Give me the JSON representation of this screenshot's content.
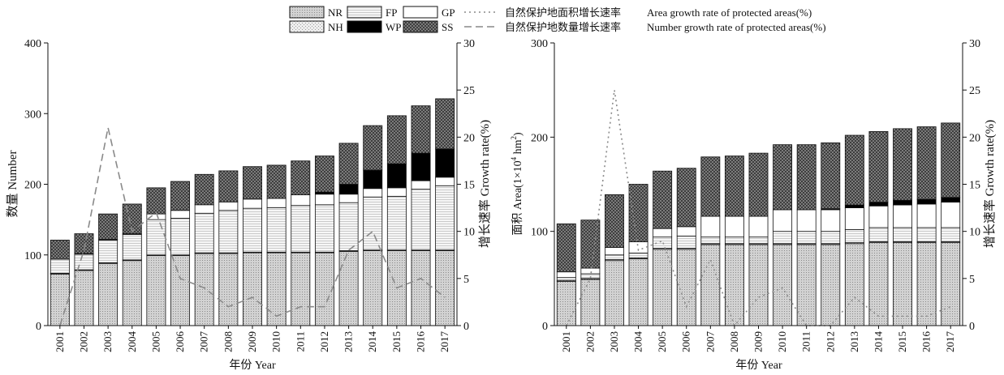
{
  "legend": {
    "items": [
      {
        "code": "NR",
        "pattern": "pat-nr"
      },
      {
        "code": "FP",
        "pattern": "pat-fp"
      },
      {
        "code": "GP",
        "pattern": "pat-gp"
      },
      {
        "code": "NH",
        "pattern": "pat-nh"
      },
      {
        "code": "WP",
        "pattern": "pat-wp"
      },
      {
        "code": "SS",
        "pattern": "pat-ss"
      }
    ],
    "line_area": {
      "zh": "自然保护地面积增长速率",
      "en": "Area growth rate of protected areas(%)"
    },
    "line_number": {
      "zh": "自然保护地数量增长速率",
      "en": "Number growth rate of protected areas(%)"
    }
  },
  "colors": {
    "nr": "#d8d8d8",
    "nh": "#ececec",
    "fp": "#f4f4f4",
    "gp": "#ffffff",
    "wp": "#000000",
    "ss": "#7a7a7a",
    "line": "#8a8a8a",
    "axis": "#111111"
  },
  "chart_data": [
    {
      "type": "bar",
      "stacked": true,
      "categories": [
        "2001",
        "2002",
        "2003",
        "2004",
        "2005",
        "2006",
        "2007",
        "2008",
        "2009",
        "2010",
        "2011",
        "2012",
        "2013",
        "2014",
        "2015",
        "2016",
        "2017"
      ],
      "series": [
        {
          "name": "NR",
          "values": [
            73,
            78,
            88,
            92,
            99,
            99,
            102,
            102,
            103,
            103,
            103,
            103,
            105,
            106,
            106,
            106,
            106
          ]
        },
        {
          "name": "NH",
          "values": [
            1,
            1,
            1,
            1,
            1,
            1,
            1,
            1,
            1,
            1,
            1,
            1,
            1,
            1,
            1,
            1,
            1
          ]
        },
        {
          "name": "FP",
          "values": [
            20,
            22,
            32,
            36,
            50,
            52,
            56,
            60,
            62,
            63,
            66,
            67,
            68,
            75,
            76,
            86,
            91
          ]
        },
        {
          "name": "GP",
          "values": [
            0,
            1,
            1,
            1,
            8,
            11,
            12,
            12,
            13,
            13,
            15,
            15,
            12,
            12,
            12,
            12,
            12
          ]
        },
        {
          "name": "WP",
          "values": [
            0,
            0,
            0,
            0,
            0,
            0,
            0,
            0,
            0,
            0,
            0,
            3,
            14,
            26,
            34,
            39,
            40
          ]
        },
        {
          "name": "SS",
          "values": [
            27,
            28,
            36,
            42,
            37,
            41,
            43,
            44,
            46,
            47,
            48,
            51,
            58,
            63,
            68,
            67,
            71
          ]
        }
      ],
      "lines": [
        {
          "name": "Number growth rate of protected areas(%)",
          "axis": "right",
          "values": [
            0,
            8,
            21,
            10,
            12,
            5,
            4,
            2,
            3,
            1,
            2,
            2,
            8,
            10,
            4,
            5,
            3
          ]
        }
      ],
      "ylabel": "数量  Number",
      "y2label": "增长速率  Growth rate(%)",
      "xlabel": "年份  Year",
      "ylim": [
        0,
        400
      ],
      "yticks": [
        0,
        100,
        200,
        300,
        400
      ],
      "y2lim": [
        0,
        30
      ],
      "y2ticks": [
        0,
        5,
        10,
        15,
        20,
        25,
        30
      ]
    },
    {
      "type": "bar",
      "stacked": true,
      "categories": [
        "2001",
        "2002",
        "2003",
        "2004",
        "2005",
        "2006",
        "2007",
        "2008",
        "2009",
        "2010",
        "2011",
        "2012",
        "2013",
        "2014",
        "2015",
        "2016",
        "2017"
      ],
      "series": [
        {
          "name": "NR",
          "values": [
            47,
            49,
            69,
            71,
            81,
            81,
            86,
            86,
            86,
            86,
            86,
            86,
            87,
            88,
            88,
            88,
            88
          ]
        },
        {
          "name": "NH",
          "values": [
            1,
            1,
            1,
            1,
            1,
            1,
            1,
            1,
            1,
            1,
            1,
            1,
            1,
            1,
            1,
            1,
            1
          ]
        },
        {
          "name": "FP",
          "values": [
            3,
            5,
            5,
            5,
            12,
            13,
            7,
            7,
            7,
            13,
            13,
            13,
            14,
            15,
            15,
            15,
            15
          ]
        },
        {
          "name": "GP",
          "values": [
            6,
            6,
            8,
            12,
            9,
            10,
            22,
            22,
            22,
            23,
            23,
            23,
            23,
            23,
            24,
            25,
            27
          ]
        },
        {
          "name": "WP",
          "values": [
            0,
            0,
            0,
            0,
            0,
            0,
            0,
            0,
            0,
            0,
            0,
            1,
            3,
            4,
            5,
            5,
            5
          ]
        },
        {
          "name": "SS",
          "values": [
            51,
            51,
            56,
            61,
            61,
            62,
            63,
            64,
            67,
            69,
            69,
            70,
            74,
            75,
            76,
            77,
            79
          ]
        }
      ],
      "lines": [
        {
          "name": "Area growth rate of protected areas(%)",
          "axis": "right",
          "values": [
            0,
            5,
            25,
            8,
            9,
            2,
            7,
            0,
            3,
            4,
            0,
            0,
            3,
            1,
            1,
            1,
            2
          ]
        }
      ],
      "ylabel": "面积  Area(×10⁴ hm²)",
      "ylabel_fragments": {
        "pre": "面积  Area(1×10",
        "sup1": "4",
        "mid": " hm",
        "sup2": "2",
        "post": ")"
      },
      "y2label": "增长速率  Growth rate(%)",
      "xlabel": "年份  Year",
      "ylim": [
        0,
        300
      ],
      "yticks": [
        0,
        100,
        200,
        300
      ],
      "y2lim": [
        0,
        30
      ],
      "y2ticks": [
        0,
        5,
        10,
        15,
        20,
        25,
        30
      ]
    }
  ]
}
